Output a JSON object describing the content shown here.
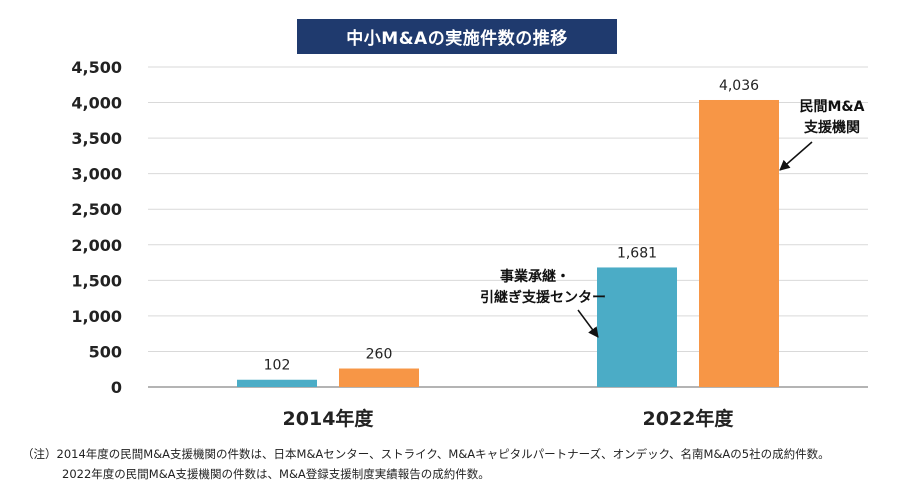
{
  "chart_data": {
    "type": "bar",
    "title": "中小M&Aの実施件数の推移",
    "categories": [
      "2014年度",
      "2022年度"
    ],
    "series": [
      {
        "name": "事業承継・引継ぎ支援センター",
        "color": "#4bacc6",
        "values": [
          102,
          1681
        ]
      },
      {
        "name": "民間M&A支援機関",
        "color": "#f79646",
        "values": [
          260,
          4036
        ]
      }
    ],
    "data_labels": [
      [
        "102",
        "260"
      ],
      [
        "1,681",
        "4,036"
      ]
    ],
    "yticks": [
      0,
      500,
      1000,
      1500,
      2000,
      2500,
      3000,
      3500,
      4000,
      4500
    ],
    "ytick_labels": [
      "0",
      "500",
      "1,000",
      "1,500",
      "2,000",
      "2,500",
      "3,000",
      "3,500",
      "4,000",
      "4,500"
    ],
    "ylim": [
      0,
      4500
    ],
    "grid": true,
    "annotations": {
      "center_line1": "事業承継・",
      "center_line2": "引継ぎ支援センター",
      "private_line1": "民間M&A",
      "private_line2": "支援機関"
    }
  },
  "notes": {
    "line1": "（注）2014年度の民間M&A支援機関の件数は、日本M&Aセンター、ストライク、M&Aキャピタルパートナーズ、オンデック、名南M&Aの5社の成約件数。",
    "line2": "2022年度の民間M&A支援機関の件数は、M&A登録支援制度実績報告の成約件数。"
  }
}
